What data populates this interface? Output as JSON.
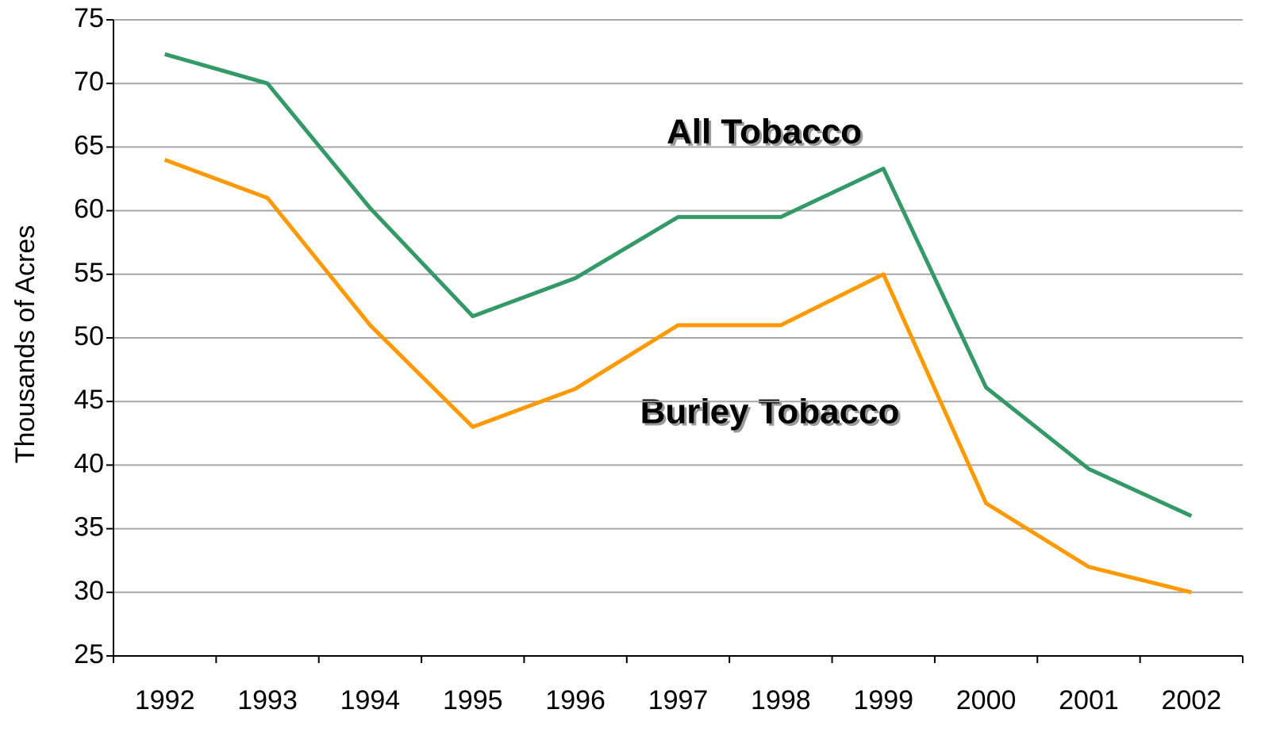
{
  "chart_data": {
    "type": "line",
    "y_label": "Thousands of Acres",
    "annotations": [
      "All Tobacco",
      "Burley Tobacco"
    ],
    "categories": [
      "1992",
      "1993",
      "1994",
      "1995",
      "1996",
      "1997",
      "1998",
      "1999",
      "2000",
      "2001",
      "2002"
    ],
    "series": [
      {
        "name": "All Tobacco",
        "color": "#339966",
        "values": [
          72.3,
          70,
          60.2,
          51.7,
          54.7,
          59.5,
          59.5,
          63.3,
          46.1,
          39.7,
          36
        ]
      },
      {
        "name": "Burley Tobacco",
        "color": "#ff9900",
        "values": [
          64,
          61,
          51,
          43,
          46,
          51,
          51,
          55,
          37,
          32,
          30
        ]
      }
    ],
    "ylim": [
      25,
      75
    ],
    "yticks": [
      25,
      30,
      35,
      40,
      45,
      50,
      55,
      60,
      65,
      70,
      75
    ],
    "grid": true
  }
}
